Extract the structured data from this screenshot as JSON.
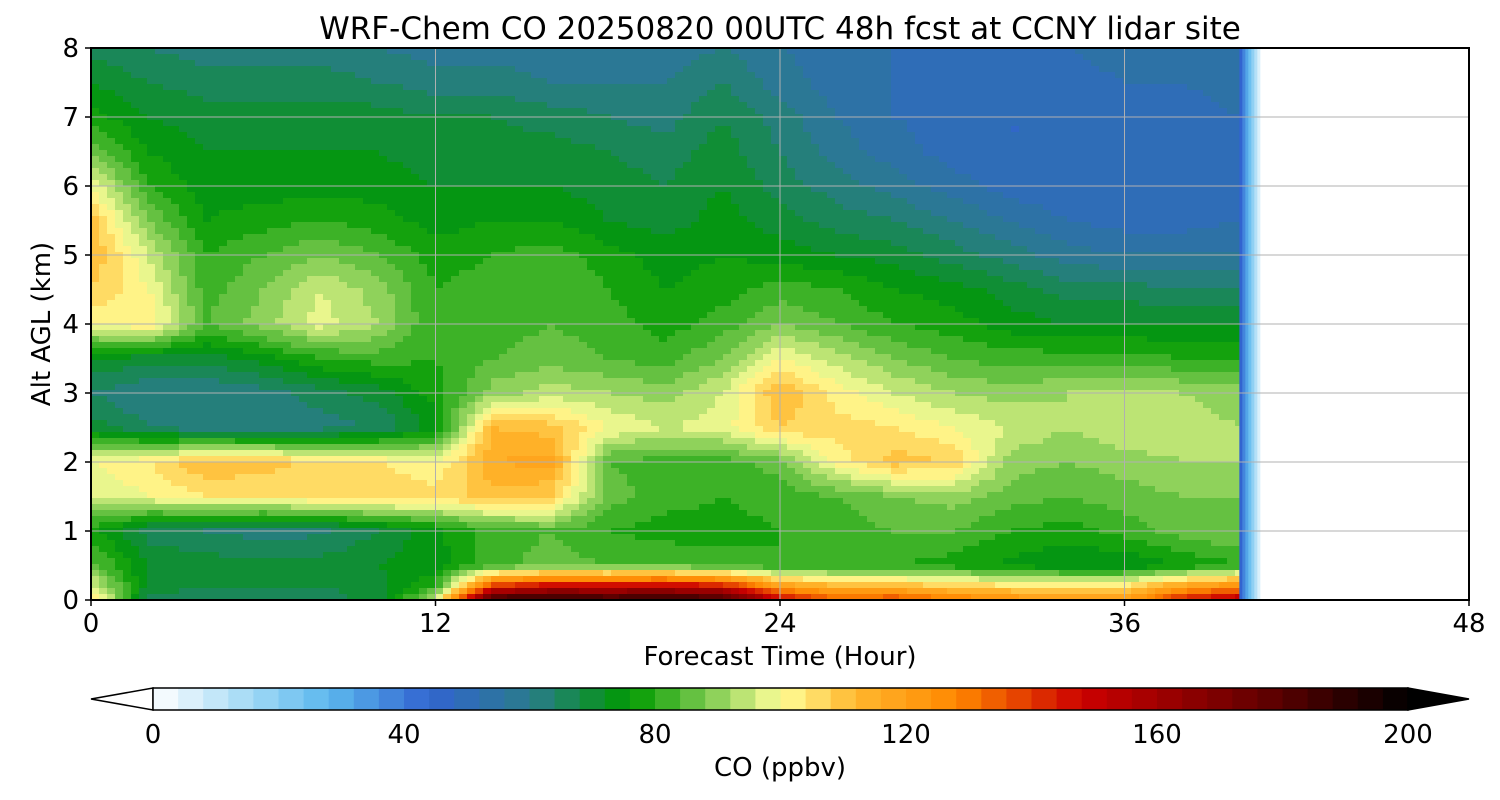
{
  "chart_data": {
    "type": "heatmap",
    "style": "filled-contour",
    "title": "WRF-Chem CO  20250820 00UTC 48h fcst at CCNY lidar site",
    "xlabel": "Forecast Time (Hour)",
    "ylabel": "Alt AGL (km)",
    "xlim": [
      0,
      48
    ],
    "ylim": [
      0,
      8
    ],
    "xticks": [
      0,
      12,
      24,
      36,
      48
    ],
    "yticks": [
      0,
      1,
      2,
      3,
      4,
      5,
      6,
      7,
      8
    ],
    "grid": true,
    "data_end_hour": 40,
    "x_hours": [
      0,
      2,
      4,
      6,
      8,
      10,
      12,
      14,
      16,
      18,
      20,
      22,
      24,
      26,
      28,
      30,
      32,
      34,
      36,
      38,
      40
    ],
    "y_km": [
      0,
      0.2,
      0.5,
      1,
      1.5,
      2,
      2.5,
      3,
      3.5,
      4,
      4.5,
      5,
      5.5,
      6,
      6.5,
      7,
      7.5,
      8
    ],
    "values_ppbv": [
      [
        108,
        66,
        66,
        66,
        66,
        70,
        95,
        190,
        192,
        188,
        190,
        188,
        150,
        135,
        138,
        130,
        125,
        120,
        120,
        145,
        155
      ],
      [
        98,
        70,
        68,
        68,
        68,
        70,
        80,
        140,
        150,
        150,
        152,
        145,
        120,
        112,
        112,
        108,
        105,
        104,
        105,
        118,
        125
      ],
      [
        86,
        72,
        70,
        70,
        70,
        72,
        74,
        82,
        86,
        84,
        84,
        82,
        80,
        80,
        80,
        78,
        75,
        72,
        72,
        76,
        80
      ],
      [
        78,
        66,
        64,
        62,
        63,
        68,
        75,
        82,
        84,
        80,
        78,
        78,
        80,
        82,
        84,
        84,
        80,
        78,
        82,
        86,
        88
      ],
      [
        96,
        100,
        104,
        104,
        106,
        108,
        106,
        110,
        108,
        86,
        82,
        80,
        82,
        84,
        88,
        90,
        86,
        84,
        86,
        88,
        88
      ],
      [
        100,
        104,
        112,
        110,
        106,
        104,
        100,
        116,
        118,
        84,
        82,
        82,
        86,
        102,
        110,
        108,
        90,
        88,
        90,
        92,
        92
      ],
      [
        70,
        64,
        60,
        60,
        62,
        64,
        74,
        112,
        110,
        100,
        96,
        98,
        108,
        106,
        104,
        100,
        96,
        92,
        96,
        94,
        92
      ],
      [
        64,
        60,
        60,
        62,
        66,
        70,
        78,
        90,
        94,
        92,
        90,
        96,
        112,
        102,
        96,
        92,
        90,
        92,
        94,
        92,
        90
      ],
      [
        72,
        70,
        70,
        74,
        80,
        82,
        80,
        84,
        86,
        84,
        82,
        88,
        100,
        94,
        88,
        84,
        82,
        82,
        82,
        80,
        80
      ],
      [
        100,
        104,
        84,
        90,
        98,
        92,
        80,
        82,
        84,
        82,
        78,
        82,
        88,
        84,
        80,
        78,
        74,
        72,
        72,
        72,
        72
      ],
      [
        108,
        100,
        82,
        88,
        96,
        90,
        80,
        82,
        84,
        80,
        76,
        78,
        82,
        80,
        76,
        74,
        70,
        66,
        66,
        64,
        64
      ],
      [
        112,
        96,
        80,
        84,
        88,
        84,
        78,
        80,
        82,
        78,
        74,
        76,
        74,
        72,
        70,
        66,
        62,
        58,
        56,
        56,
        56
      ],
      [
        110,
        88,
        76,
        78,
        80,
        78,
        74,
        76,
        76,
        72,
        70,
        74,
        70,
        66,
        64,
        60,
        56,
        52,
        50,
        50,
        52
      ],
      [
        100,
        80,
        74,
        74,
        74,
        74,
        72,
        72,
        72,
        70,
        68,
        72,
        66,
        62,
        58,
        54,
        50,
        48,
        48,
        50,
        52
      ],
      [
        86,
        76,
        72,
        72,
        72,
        72,
        70,
        70,
        70,
        68,
        66,
        70,
        64,
        58,
        54,
        50,
        48,
        48,
        48,
        50,
        52
      ],
      [
        78,
        72,
        70,
        70,
        70,
        70,
        68,
        68,
        66,
        64,
        62,
        68,
        62,
        56,
        52,
        50,
        48,
        48,
        50,
        50,
        52
      ],
      [
        72,
        68,
        66,
        66,
        66,
        64,
        62,
        62,
        60,
        60,
        60,
        64,
        58,
        54,
        52,
        50,
        50,
        50,
        52,
        52,
        54
      ],
      [
        66,
        64,
        62,
        62,
        62,
        60,
        58,
        58,
        58,
        58,
        58,
        60,
        56,
        54,
        52,
        52,
        52,
        52,
        54,
        54,
        56
      ]
    ],
    "colorbar": {
      "label": "CO  (ppbv)",
      "min": 0,
      "max": 200,
      "step": 4,
      "ticks": [
        0,
        40,
        80,
        120,
        160,
        200
      ],
      "extend": "both",
      "colors": [
        {
          "v": 0,
          "c": "#ffffff"
        },
        {
          "v": 16,
          "c": "#9fd8f5"
        },
        {
          "v": 28,
          "c": "#5cb8ee"
        },
        {
          "v": 44,
          "c": "#3264d0"
        },
        {
          "v": 60,
          "c": "#2a7b8c"
        },
        {
          "v": 76,
          "c": "#009a00"
        },
        {
          "v": 88,
          "c": "#79c94e"
        },
        {
          "v": 100,
          "c": "#ffff99"
        },
        {
          "v": 112,
          "c": "#ffb72e"
        },
        {
          "v": 128,
          "c": "#ff8800"
        },
        {
          "v": 148,
          "c": "#cc0000"
        },
        {
          "v": 176,
          "c": "#660000"
        },
        {
          "v": 200,
          "c": "#000000"
        }
      ]
    }
  }
}
